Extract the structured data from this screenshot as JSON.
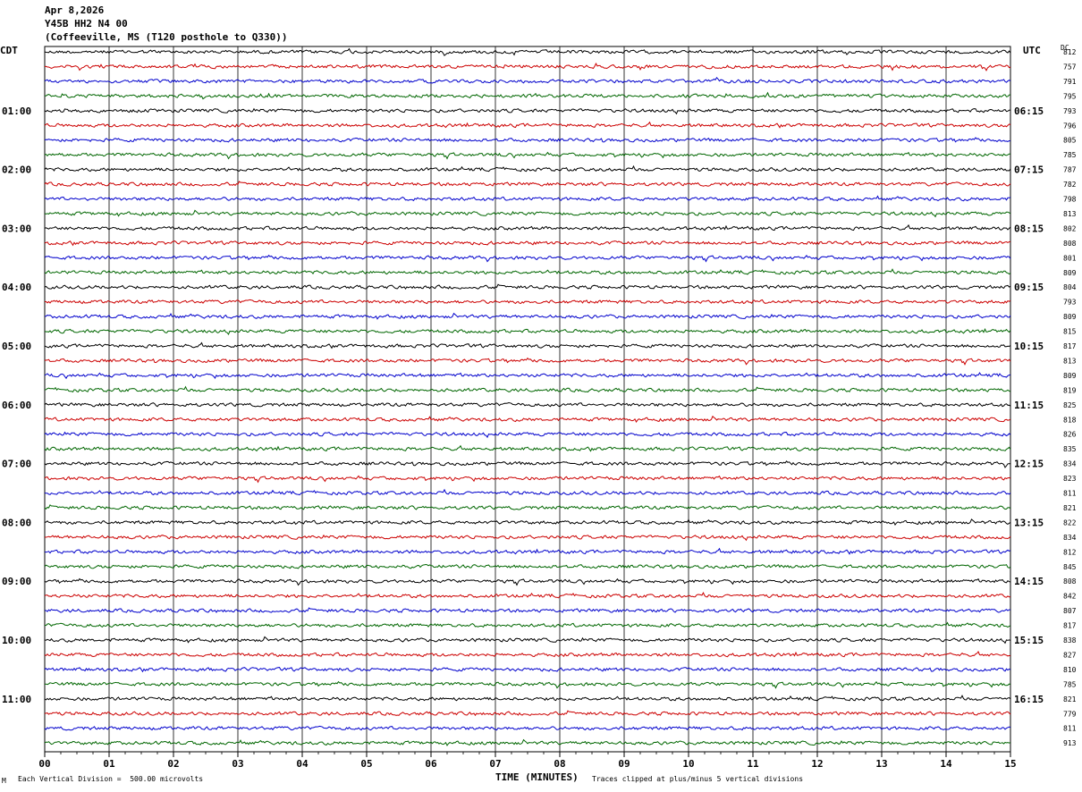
{
  "header": {
    "date": "Apr 8,2026",
    "station": "Y45B HH2 N4 00",
    "location": "(Coffeeville, MS (T120 posthole to Q330))"
  },
  "left_axis_label": "CDT",
  "right_axis_label": "UTC",
  "dc_label": "DC",
  "footer": {
    "scale_note": "Each Vertical Division =  500.00 microvolts",
    "x_axis_title": "TIME (MINUTES)",
    "clip_note": "Traces clipped at plus/minus 5 vertical divisions",
    "corner_mark": "M"
  },
  "chart_data": {
    "type": "line",
    "title": "",
    "xlabel": "TIME (MINUTES)",
    "xlim": [
      0,
      15
    ],
    "x_ticks": [
      "00",
      "01",
      "02",
      "03",
      "04",
      "05",
      "06",
      "07",
      "08",
      "09",
      "10",
      "11",
      "12",
      "13",
      "14",
      "15"
    ],
    "grid": true,
    "trace_colors": [
      "#000000",
      "#cc0000",
      "#0000cc",
      "#006600"
    ],
    "trace_count": 48,
    "row_interval_minutes": 15,
    "left_time_labels": [
      {
        "row": 4,
        "label": "01:00"
      },
      {
        "row": 8,
        "label": "02:00"
      },
      {
        "row": 12,
        "label": "03:00"
      },
      {
        "row": 16,
        "label": "04:00"
      },
      {
        "row": 20,
        "label": "05:00"
      },
      {
        "row": 24,
        "label": "06:00"
      },
      {
        "row": 28,
        "label": "07:00"
      },
      {
        "row": 32,
        "label": "08:00"
      },
      {
        "row": 36,
        "label": "09:00"
      },
      {
        "row": 40,
        "label": "10:00"
      },
      {
        "row": 44,
        "label": "11:00"
      }
    ],
    "right_time_labels": [
      {
        "row": 4,
        "label": "06:15"
      },
      {
        "row": 8,
        "label": "07:15"
      },
      {
        "row": 12,
        "label": "08:15"
      },
      {
        "row": 16,
        "label": "09:15"
      },
      {
        "row": 20,
        "label": "10:15"
      },
      {
        "row": 24,
        "label": "11:15"
      },
      {
        "row": 28,
        "label": "12:15"
      },
      {
        "row": 32,
        "label": "13:15"
      },
      {
        "row": 36,
        "label": "14:15"
      },
      {
        "row": 40,
        "label": "15:15"
      },
      {
        "row": 44,
        "label": "16:15"
      }
    ],
    "dc_offsets": [
      812,
      757,
      791,
      795,
      793,
      796,
      805,
      785,
      787,
      782,
      798,
      813,
      802,
      808,
      801,
      809,
      804,
      793,
      809,
      815,
      817,
      813,
      809,
      819,
      825,
      818,
      826,
      835,
      834,
      823,
      811,
      821,
      822,
      834,
      812,
      845,
      808,
      842,
      807,
      817,
      838,
      827,
      810,
      785,
      821,
      779,
      811,
      913
    ]
  }
}
